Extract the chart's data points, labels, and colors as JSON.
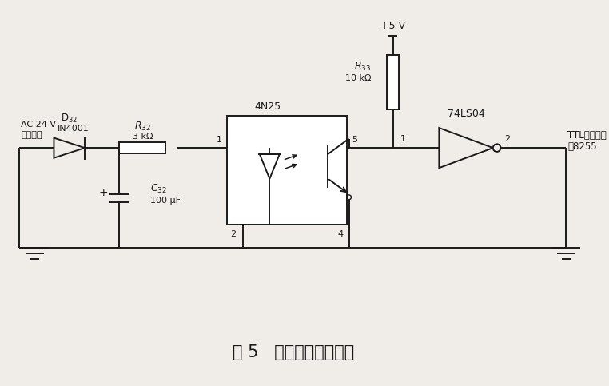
{
  "title": "图 5   信号电平变换电路",
  "title_fontsize": 15,
  "bg_color": "#f0ede8",
  "line_color": "#1a1a1a",
  "labels": {
    "D32": "D$_{32}$",
    "IN4001": "IN4001",
    "R32": "$R_{32}$",
    "R32_val": "3 kΩ",
    "C32": "$C_{32}$",
    "C32_val": "100 μF",
    "AC24V": "AC 24 V",
    "level_signal": "电平信号",
    "4N25": "4N25",
    "R33": "$R_{33}$",
    "R33_val": "10 kΩ",
    "plus5V": "+5 V",
    "74LS04": "74LS04",
    "TTL": "TTL电平信号",
    "to8255": "去8255",
    "pin1": "1",
    "pin2": "2",
    "pin4": "4",
    "pin5": "5",
    "inv_out": "2",
    "plus": "+"
  }
}
